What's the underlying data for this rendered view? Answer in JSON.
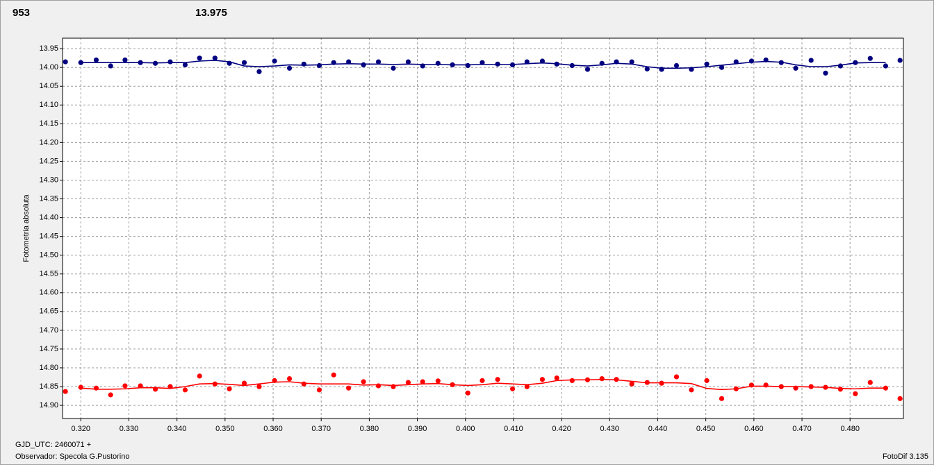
{
  "header": {
    "left": "953",
    "right": "13.975",
    "left_color": "#ff0000",
    "right_color": "#000080"
  },
  "footer": {
    "line1": "GJD_UTC: 2460071 +",
    "line2": "Observador: Specola G.Pustorino",
    "version": "FotoDif 3.135"
  },
  "chart_data": {
    "type": "scatter",
    "y_label": "Fotometria absoluta",
    "y_inverted": true,
    "grid": true,
    "xlim": [
      0.3162,
      0.4911
    ],
    "ylim": [
      13.922,
      14.935
    ],
    "xticks": [
      {
        "value": 0.32,
        "label": "0.320"
      },
      {
        "value": 0.33,
        "label": "0.330"
      },
      {
        "value": 0.34,
        "label": "0.340"
      },
      {
        "value": 0.35,
        "label": "0.350"
      },
      {
        "value": 0.36,
        "label": "0.360"
      },
      {
        "value": 0.37,
        "label": "0.370"
      },
      {
        "value": 0.38,
        "label": "0.380"
      },
      {
        "value": 0.39,
        "label": "0.390"
      },
      {
        "value": 0.4,
        "label": "0.400"
      },
      {
        "value": 0.41,
        "label": "0.410"
      },
      {
        "value": 0.42,
        "label": "0.420"
      },
      {
        "value": 0.43,
        "label": "0.430"
      },
      {
        "value": 0.44,
        "label": "0.440"
      },
      {
        "value": 0.45,
        "label": "0.450"
      },
      {
        "value": 0.46,
        "label": "0.460"
      },
      {
        "value": 0.47,
        "label": "0.470"
      },
      {
        "value": 0.48,
        "label": "0.480"
      }
    ],
    "yticks": [
      13.95,
      {
        "value": 14.0,
        "label": "14.00"
      },
      14.05,
      {
        "value": 14.1,
        "label": "14.10"
      },
      14.15,
      {
        "value": 14.2,
        "label": "14.20"
      },
      14.25,
      {
        "value": 14.3,
        "label": "14.30"
      },
      14.35,
      {
        "value": 14.4,
        "label": "14.40"
      },
      14.45,
      {
        "value": 14.5,
        "label": "14.50"
      },
      14.55,
      {
        "value": 14.6,
        "label": "14.60"
      },
      14.65,
      {
        "value": 14.7,
        "label": "14.70"
      },
      14.75,
      {
        "value": 14.8,
        "label": "14.80"
      },
      14.85,
      {
        "value": 14.9,
        "label": "14.90"
      }
    ],
    "x": [
      0.3168,
      0.32,
      0.3232,
      0.3262,
      0.3292,
      0.3324,
      0.3355,
      0.3386,
      0.3417,
      0.3447,
      0.3479,
      0.3509,
      0.354,
      0.3571,
      0.3603,
      0.3634,
      0.3664,
      0.3696,
      0.3726,
      0.3757,
      0.3788,
      0.3819,
      0.385,
      0.3881,
      0.3911,
      0.3943,
      0.3973,
      0.4005,
      0.4035,
      0.4067,
      0.4098,
      0.4128,
      0.416,
      0.419,
      0.4222,
      0.4254,
      0.4284,
      0.4314,
      0.4346,
      0.4378,
      0.4408,
      0.4439,
      0.447,
      0.4502,
      0.4533,
      0.4563,
      0.4595,
      0.4625,
      0.4657,
      0.4687,
      0.4719,
      0.4749,
      0.478,
      0.4811,
      0.4842,
      0.4874,
      0.4904
    ],
    "series": [
      {
        "color": "#000080",
        "values": [
          13.985,
          13.987,
          13.98,
          13.996,
          13.98,
          13.987,
          13.989,
          13.985,
          13.993,
          13.975,
          13.975,
          13.989,
          13.987,
          14.011,
          13.983,
          14.002,
          13.991,
          13.995,
          13.987,
          13.985,
          13.993,
          13.985,
          14.002,
          13.985,
          13.996,
          13.989,
          13.993,
          13.995,
          13.987,
          13.991,
          13.993,
          13.985,
          13.983,
          13.991,
          13.995,
          14.005,
          13.989,
          13.985,
          13.985,
          14.004,
          14.005,
          13.995,
          14.005,
          13.991,
          14.0,
          13.985,
          13.983,
          13.98,
          13.987,
          14.002,
          13.981,
          14.015,
          13.996,
          13.987,
          13.976,
          13.996,
          13.981
        ],
        "trend": [
          null,
          13.987,
          13.987,
          13.987,
          13.987,
          13.987,
          13.988,
          13.987,
          13.987,
          13.983,
          13.981,
          13.985,
          13.996,
          13.998,
          13.996,
          13.993,
          13.994,
          13.993,
          13.991,
          13.99,
          13.991,
          13.991,
          13.992,
          13.991,
          13.992,
          13.992,
          13.993,
          13.993,
          13.992,
          13.992,
          13.992,
          13.99,
          13.988,
          13.99,
          13.994,
          13.996,
          13.993,
          13.989,
          13.991,
          13.998,
          14.002,
          14.002,
          14.001,
          13.998,
          13.994,
          13.99,
          13.986,
          13.984,
          13.986,
          13.993,
          13.998,
          13.998,
          13.994,
          13.988,
          13.987,
          13.987,
          null
        ]
      },
      {
        "color": "#ff0000",
        "values": [
          14.863,
          14.852,
          14.854,
          14.872,
          14.848,
          14.848,
          14.857,
          14.85,
          14.859,
          14.822,
          14.843,
          14.856,
          14.841,
          14.85,
          14.834,
          14.829,
          14.843,
          14.859,
          14.819,
          14.854,
          14.837,
          14.848,
          14.85,
          14.839,
          14.837,
          14.835,
          14.845,
          14.867,
          14.834,
          14.831,
          14.856,
          14.85,
          14.831,
          14.827,
          14.834,
          14.832,
          14.829,
          14.831,
          14.843,
          14.839,
          14.841,
          14.824,
          14.859,
          14.834,
          14.882,
          14.856,
          14.846,
          14.846,
          14.85,
          14.854,
          14.85,
          14.852,
          14.857,
          14.869,
          14.839,
          14.854,
          14.882
        ],
        "trend": [
          null,
          14.854,
          14.857,
          14.857,
          14.856,
          14.853,
          14.853,
          14.855,
          14.85,
          14.843,
          14.842,
          14.844,
          14.847,
          14.843,
          14.838,
          14.837,
          14.841,
          14.843,
          14.843,
          14.843,
          14.846,
          14.845,
          14.847,
          14.845,
          14.843,
          14.842,
          14.845,
          14.847,
          14.845,
          14.841,
          14.843,
          14.845,
          14.841,
          14.834,
          14.832,
          14.832,
          14.831,
          14.832,
          14.836,
          14.84,
          14.84,
          14.84,
          14.842,
          14.855,
          14.858,
          14.856,
          14.849,
          14.849,
          14.85,
          14.85,
          14.851,
          14.852,
          14.855,
          14.856,
          14.854,
          14.854,
          null
        ]
      }
    ]
  }
}
